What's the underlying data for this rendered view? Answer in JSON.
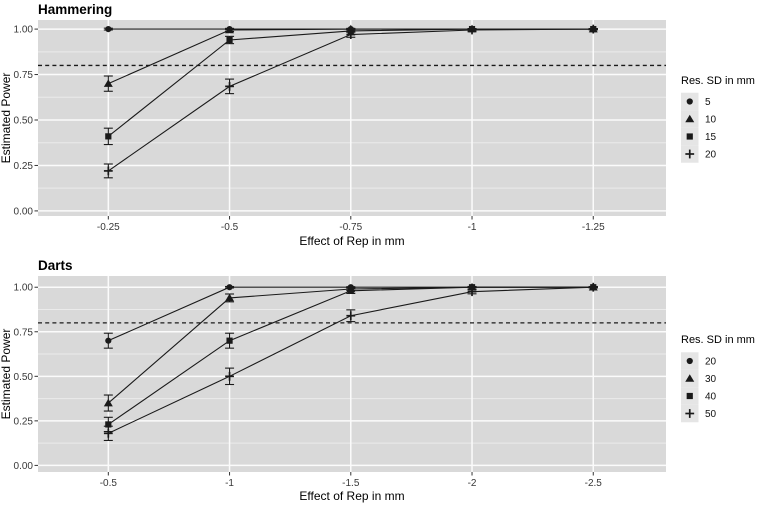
{
  "colors": {
    "page_bg": "#ffffff",
    "panel_bg": "#d9d9d9",
    "grid_major": "#fbfbfb",
    "grid_minor": "#ebebeb",
    "series_color": "#1a1a1a",
    "threshold_color": "#1a1a1a",
    "legend_key_bg": "#e5e5e5",
    "tick_mark_color": "#333333",
    "tick_text_color": "#383838"
  },
  "chart_data": [
    {
      "type": "line",
      "title": "Hammering",
      "xlabel": "Effect of Rep in mm",
      "ylabel": "Estimated Power",
      "legend_title": "Res. SD in mm",
      "legend_position": "right",
      "grid": true,
      "x": [
        -0.25,
        -0.5,
        -0.75,
        -1,
        -1.25
      ],
      "x_tick_labels": [
        "-0.25",
        "-0.5",
        "-0.75",
        "-1",
        "-1.25"
      ],
      "x_range": [
        -0.105,
        -1.4
      ],
      "y_ticks": [
        0,
        0.25,
        0.5,
        0.75,
        1
      ],
      "y_tick_labels": [
        "0.00",
        "0.25",
        "0.50",
        "0.75",
        "1.00"
      ],
      "ylim": [
        -0.028,
        1.05
      ],
      "hline": {
        "y": 0.8,
        "style": "dashed"
      },
      "series": [
        {
          "name": "5",
          "marker": "circle",
          "values": [
            1.0,
            1.0,
            1.0,
            1.0,
            1.0
          ],
          "errors": [
            0.005,
            0.004,
            0.003,
            0.003,
            0.003
          ]
        },
        {
          "name": "10",
          "marker": "triangle",
          "values": [
            0.7,
            0.995,
            1.0,
            1.0,
            1.0
          ],
          "errors": [
            0.042,
            0.008,
            0.004,
            0.003,
            0.003
          ]
        },
        {
          "name": "15",
          "marker": "square",
          "values": [
            0.41,
            0.94,
            0.99,
            1.0,
            1.0
          ],
          "errors": [
            0.045,
            0.02,
            0.007,
            0.003,
            0.003
          ]
        },
        {
          "name": "20",
          "marker": "plus",
          "values": [
            0.22,
            0.685,
            0.97,
            0.995,
            1.0
          ],
          "errors": [
            0.038,
            0.04,
            0.015,
            0.007,
            0.003
          ]
        }
      ]
    },
    {
      "type": "line",
      "title": "Darts",
      "xlabel": "Effect of Rep in mm",
      "ylabel": "Estimated Power",
      "legend_title": "Res. SD in mm",
      "legend_position": "right",
      "grid": true,
      "x": [
        -0.5,
        -1,
        -1.5,
        -2,
        -2.5
      ],
      "x_tick_labels": [
        "-0.5",
        "-1",
        "-1.5",
        "-2",
        "-2.5"
      ],
      "x_range": [
        -0.21,
        -2.8
      ],
      "y_ticks": [
        0,
        0.25,
        0.5,
        0.75,
        1
      ],
      "y_tick_labels": [
        "0.00",
        "0.25",
        "0.50",
        "0.75",
        "1.00"
      ],
      "ylim": [
        -0.037,
        1.063
      ],
      "hline": {
        "y": 0.8,
        "style": "dashed"
      },
      "series": [
        {
          "name": "20",
          "marker": "circle",
          "values": [
            0.7,
            1.0,
            1.0,
            1.0,
            1.0
          ],
          "errors": [
            0.042,
            0.004,
            0.003,
            0.003,
            0.003
          ]
        },
        {
          "name": "30",
          "marker": "triangle",
          "values": [
            0.35,
            0.94,
            0.99,
            1.0,
            1.0
          ],
          "errors": [
            0.045,
            0.022,
            0.008,
            0.003,
            0.003
          ]
        },
        {
          "name": "40",
          "marker": "square",
          "values": [
            0.23,
            0.7,
            0.98,
            1.0,
            1.0
          ],
          "errors": [
            0.04,
            0.042,
            0.015,
            0.004,
            0.003
          ]
        },
        {
          "name": "50",
          "marker": "plus",
          "values": [
            0.18,
            0.5,
            0.84,
            0.975,
            1.0
          ],
          "errors": [
            0.04,
            0.046,
            0.033,
            0.012,
            0.004
          ]
        }
      ]
    }
  ]
}
